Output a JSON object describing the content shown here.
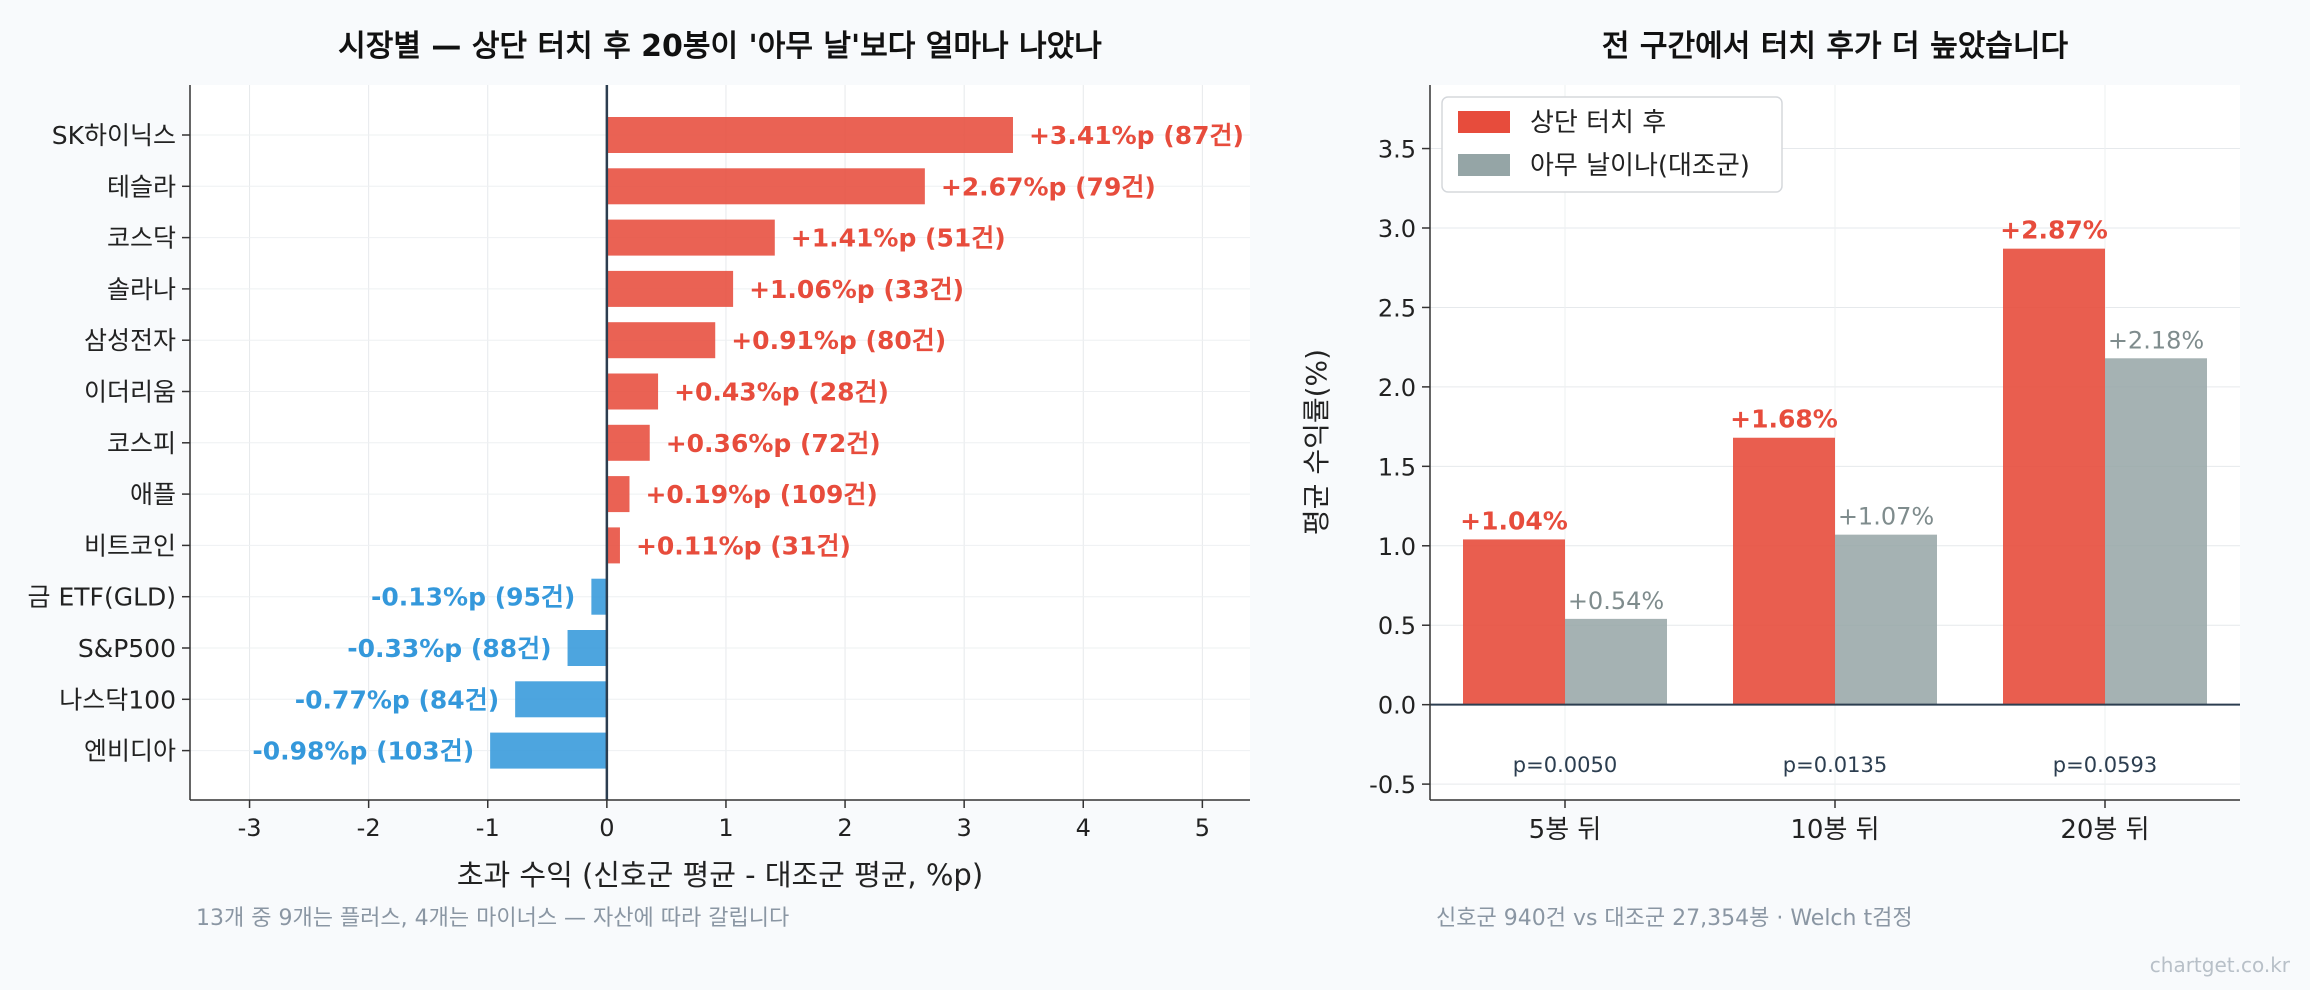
{
  "chart_data": [
    {
      "type": "bar",
      "orientation": "horizontal",
      "title": "시장별 — 상단 터치 후 20봉이 '아무 날'보다 얼마나 나았나",
      "xlabel": "초과 수익 (신호군 평균 - 대조군 평균, %p)",
      "footnote": "13개 중 9개는 플러스, 4개는 마이너스 — 자산에 따라 갈립니다",
      "xlim": [
        -3.5,
        5.4
      ],
      "xticks": [
        "-3",
        "-2",
        "-1",
        "0",
        "1",
        "2",
        "3",
        "4",
        "5"
      ],
      "grid": true,
      "colors": {
        "positive": "#e74c3c",
        "negative": "#3498db"
      },
      "categories": [
        "SK하이닉스",
        "테슬라",
        "코스닥",
        "솔라나",
        "삼성전자",
        "이더리움",
        "코스피",
        "애플",
        "비트코인",
        "금 ETF(GLD)",
        "S&P500",
        "나스닥100",
        "엔비디아"
      ],
      "values": [
        3.41,
        2.67,
        1.41,
        1.06,
        0.91,
        0.43,
        0.36,
        0.19,
        0.11,
        -0.13,
        -0.33,
        -0.77,
        -0.98
      ],
      "data_labels": [
        "+3.41%p (87건)",
        "+2.67%p (79건)",
        "+1.41%p (51건)",
        "+1.06%p (33건)",
        "+0.91%p (80건)",
        "+0.43%p (28건)",
        "+0.36%p (72건)",
        "+0.19%p (109건)",
        "+0.11%p (31건)",
        "-0.13%p (95건)",
        "-0.33%p (88건)",
        "-0.77%p (84건)",
        "-0.98%p (103건)"
      ]
    },
    {
      "type": "bar",
      "title": "전 구간에서 터치 후가 더 높았습니다",
      "ylabel": "평균 수익률(%)",
      "footnote": "신호군 940건 vs 대조군 27,354봉 · Welch t검정",
      "ylim": [
        -0.6,
        3.9
      ],
      "yticks": [
        "-0.5",
        "0.0",
        "0.5",
        "1.0",
        "1.5",
        "2.0",
        "2.5",
        "3.0",
        "3.5"
      ],
      "grid": true,
      "legend_position": "top-left",
      "categories": [
        "5봉 뒤",
        "10봉 뒤",
        "20봉 뒤"
      ],
      "series": [
        {
          "name": "상단 터치 후",
          "color": "#e74c3c",
          "values": [
            1.04,
            1.68,
            2.87
          ],
          "labels": [
            "+1.04%",
            "+1.68%",
            "+2.87%"
          ]
        },
        {
          "name": "아무 날이나(대조군)",
          "color": "#95a5a6",
          "values": [
            0.54,
            1.07,
            2.18
          ],
          "labels": [
            "+0.54%",
            "+1.07%",
            "+2.18%"
          ]
        }
      ],
      "p_values": [
        "p=0.0050",
        "p=0.0135",
        "p=0.0593"
      ]
    }
  ],
  "watermark": "chartget.co.kr"
}
